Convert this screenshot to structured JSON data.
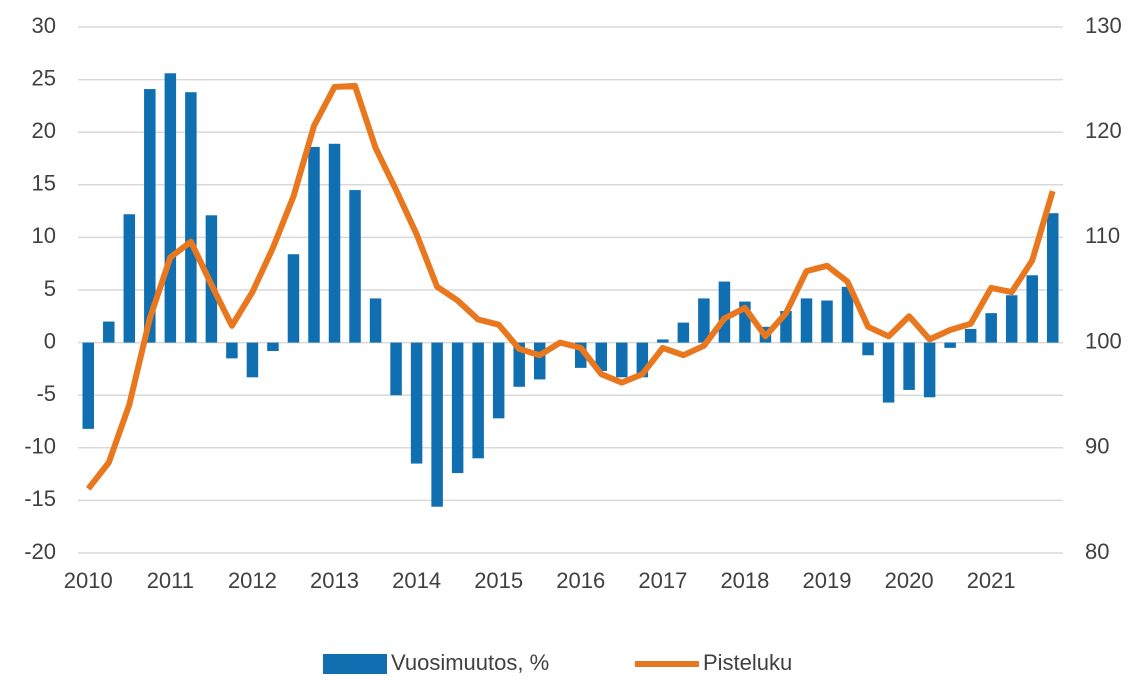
{
  "chart_data": {
    "type": "bar-line",
    "categories": [
      "2010",
      null,
      null,
      null,
      "2011",
      null,
      null,
      null,
      "2012",
      null,
      null,
      null,
      "2013",
      null,
      null,
      null,
      "2014",
      null,
      null,
      null,
      "2015",
      null,
      null,
      null,
      "2016",
      null,
      null,
      null,
      "2017",
      null,
      null,
      null,
      "2018",
      null,
      null,
      null,
      "2019",
      null,
      null,
      null,
      "2020",
      null,
      null,
      null,
      "2021",
      null,
      null,
      null
    ],
    "series": [
      {
        "name": "Vuosimuutos, %",
        "type": "bar",
        "color": "#0f6fb0",
        "values": [
          -8.2,
          2.0,
          12.2,
          24.1,
          25.6,
          23.8,
          12.1,
          -1.5,
          -3.3,
          -0.8,
          8.4,
          18.6,
          18.9,
          14.5,
          4.2,
          -5.0,
          -11.5,
          -15.6,
          -12.4,
          -11.0,
          -7.2,
          -4.2,
          -3.5,
          -0.3,
          -2.4,
          -2.7,
          -3.3,
          -3.3,
          0.3,
          1.9,
          4.2,
          5.8,
          3.9,
          1.5,
          3.0,
          4.2,
          4.0,
          5.3,
          -1.2,
          -5.7,
          -4.5,
          -5.2,
          -0.5,
          1.3,
          2.8,
          4.5,
          6.4,
          12.3
        ]
      },
      {
        "name": "Pisteluku",
        "type": "line",
        "axis": "y2",
        "color": "#e8771e",
        "values": [
          86.1,
          88.6,
          94.1,
          102.3,
          108.1,
          109.6,
          105.5,
          101.6,
          104.8,
          109.0,
          113.9,
          120.6,
          124.3,
          124.4,
          118.5,
          114.5,
          110.3,
          105.3,
          104.0,
          102.2,
          101.7,
          99.4,
          98.8,
          100.0,
          99.5,
          97.0,
          96.2,
          97.0,
          99.5,
          98.8,
          99.7,
          102.3,
          103.3,
          100.6,
          102.8,
          106.8,
          107.3,
          105.8,
          101.5,
          100.6,
          102.5,
          100.3,
          101.2,
          101.8,
          105.2,
          104.8,
          107.8,
          114.4
        ]
      }
    ],
    "ylim": [
      -20,
      30
    ],
    "yticks": [
      -20,
      -15,
      -10,
      -5,
      0,
      5,
      10,
      15,
      20,
      25,
      30
    ],
    "y2lim": [
      80,
      130
    ],
    "y2ticks": [
      80,
      90,
      100,
      110,
      120,
      130
    ],
    "grid": true,
    "legend": "bottom"
  }
}
